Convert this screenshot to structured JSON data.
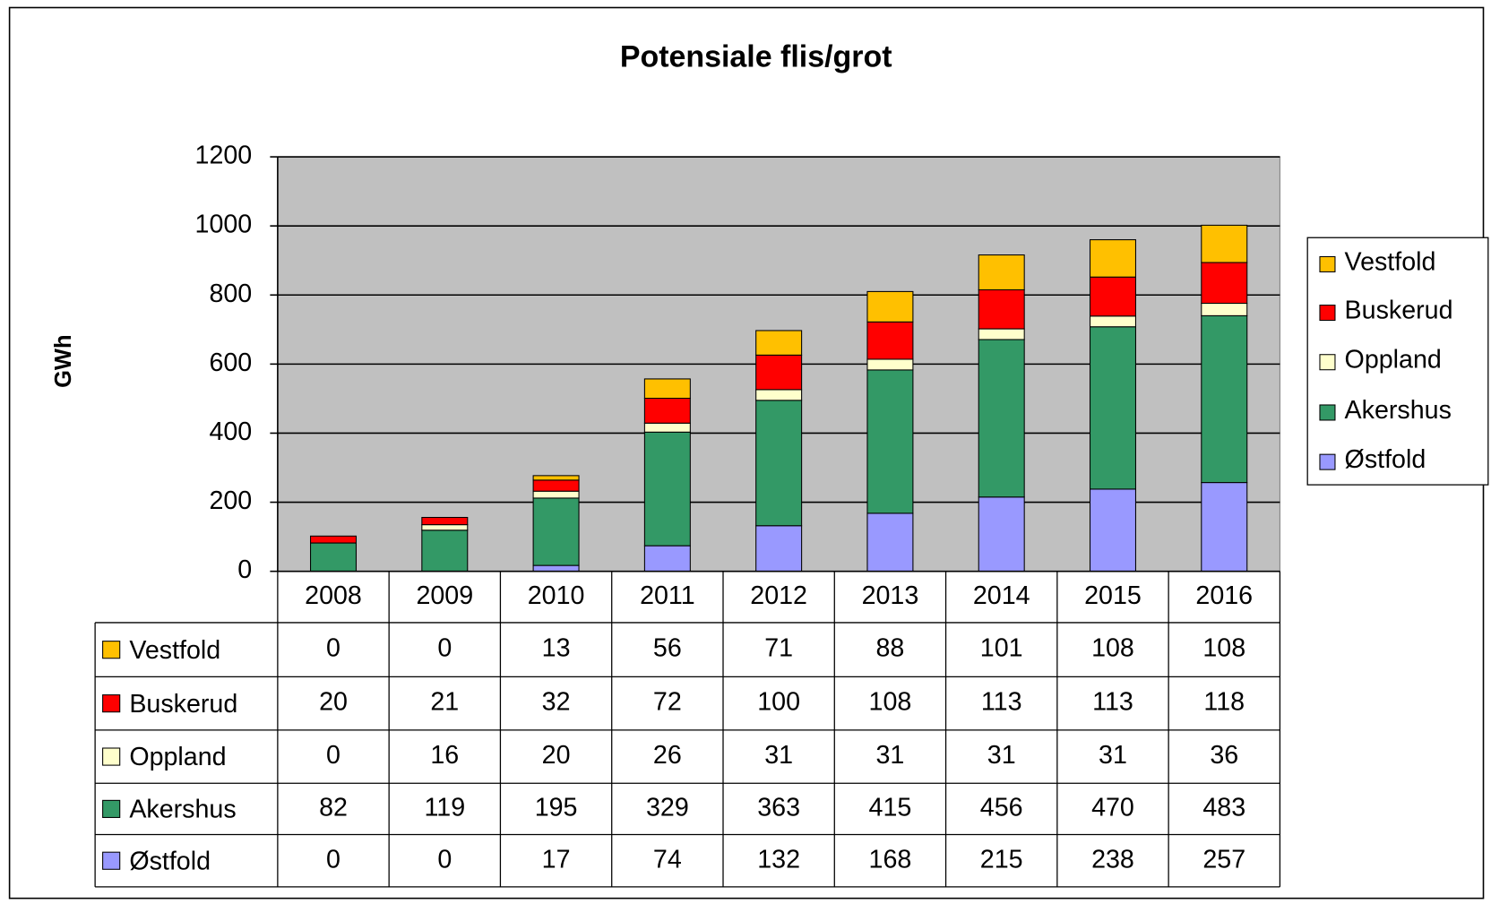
{
  "chart_data": {
    "type": "stacked_bar",
    "title": "Potensiale flis/grot",
    "y_label": "GWh",
    "categories": [
      "2008",
      "2009",
      "2010",
      "2011",
      "2012",
      "2013",
      "2014",
      "2015",
      "2016"
    ],
    "series": [
      {
        "name": "Vestfold",
        "color": "#FFC000",
        "values": [
          0,
          0,
          13,
          56,
          71,
          88,
          101,
          108,
          108
        ]
      },
      {
        "name": "Buskerud",
        "color": "#FF0000",
        "values": [
          20,
          21,
          32,
          72,
          100,
          108,
          113,
          113,
          118
        ]
      },
      {
        "name": "Oppland",
        "color": "#FFFFCC",
        "values": [
          0,
          16,
          20,
          26,
          31,
          31,
          31,
          31,
          36
        ]
      },
      {
        "name": "Akershus",
        "color": "#339966",
        "values": [
          82,
          119,
          195,
          329,
          363,
          415,
          456,
          470,
          483
        ]
      },
      {
        "name": "Østfold",
        "color": "#9999FF",
        "values": [
          0,
          0,
          17,
          74,
          132,
          168,
          215,
          238,
          257
        ]
      }
    ],
    "ylim": [
      0,
      1200
    ],
    "yticks": [
      0,
      200,
      400,
      600,
      800,
      1000,
      1200
    ],
    "grid": true,
    "legend": "right",
    "plot_background": "#C0C0C0"
  }
}
